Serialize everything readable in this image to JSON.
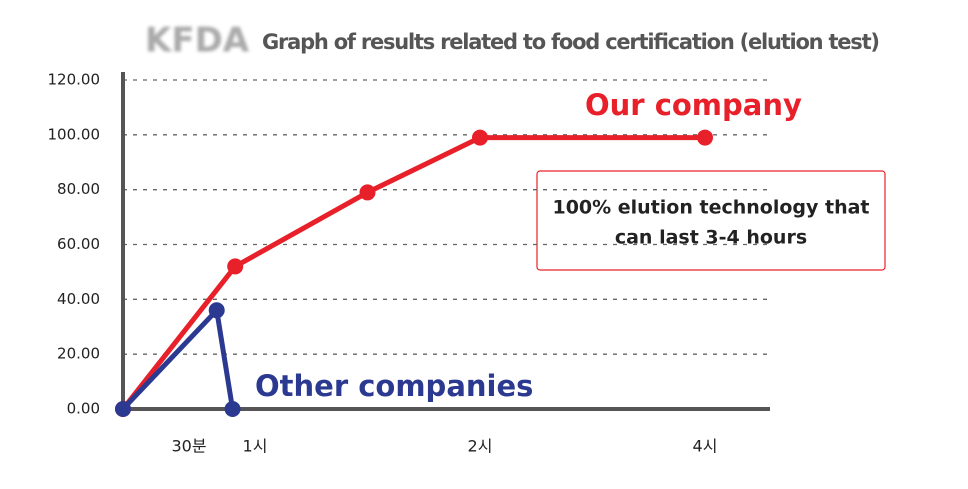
{
  "chart_data": {
    "type": "line",
    "logo": "KFDA",
    "title": "Graph of results related to food certification (elution test)",
    "annotation": [
      "100% elution technology that",
      "can last 3-4 hours"
    ],
    "series": [
      {
        "name": "Our company",
        "color": "#e8202a",
        "x": [
          0,
          0.85,
          1.5,
          2,
          4
        ],
        "values": [
          0,
          52,
          79,
          99,
          99
        ]
      },
      {
        "name": "Other companies",
        "color": "#2b3990",
        "x": [
          0,
          0.71,
          0.83
        ],
        "values": [
          0,
          36,
          0
        ]
      }
    ],
    "xlim": [
      0,
      4.3
    ],
    "xticks": [
      {
        "value": 0.5,
        "label": "30분"
      },
      {
        "value": 1,
        "label": "1시"
      },
      {
        "value": 2,
        "label": "2시"
      },
      {
        "value": 4,
        "label": "4시"
      }
    ],
    "ylim": [
      0,
      120
    ],
    "yticks": [
      {
        "value": 0,
        "label": "0.00"
      },
      {
        "value": 20,
        "label": "20.00"
      },
      {
        "value": 40,
        "label": "40.00"
      },
      {
        "value": 60,
        "label": "60.00"
      },
      {
        "value": 80,
        "label": "80.00"
      },
      {
        "value": 100,
        "label": "100.00"
      },
      {
        "value": 120,
        "label": "120.00"
      }
    ],
    "grid": true
  }
}
